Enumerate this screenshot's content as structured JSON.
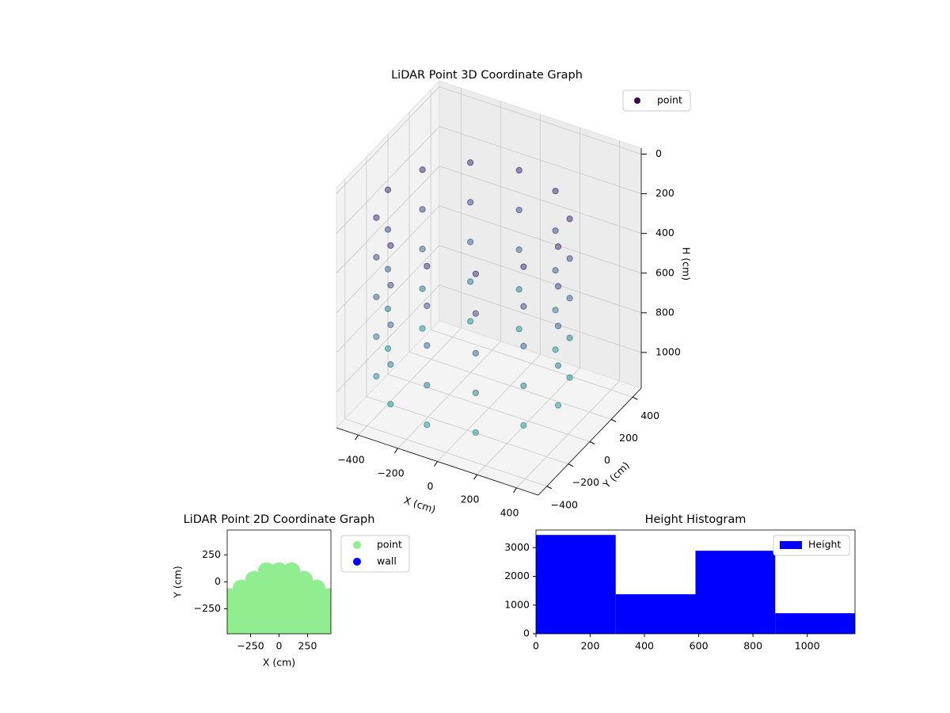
{
  "chart_data": [
    {
      "type": "scatter3d",
      "title": "LiDAR Point 3D Coordinate Graph",
      "xlabel": "X (cm)",
      "ylabel": "Y (cm)",
      "zlabel": "H (cm)",
      "xlim": [
        -510,
        510
      ],
      "ylim": [
        -480,
        480
      ],
      "zlim": [
        -30,
        1180
      ],
      "zinvert": true,
      "legend": "upper right",
      "xticks": [
        {
          "value": -400,
          "label": "−400"
        },
        {
          "value": -200,
          "label": "−200"
        },
        0,
        200,
        400
      ],
      "yticks": [
        {
          "value": -400,
          "label": "−400"
        },
        {
          "value": -200,
          "label": "−200"
        },
        0,
        200,
        400
      ],
      "zticks": [
        0,
        200,
        400,
        600,
        800,
        1000
      ],
      "series": [
        {
          "name": "point",
          "color": "#440154",
          "colormap": "viridis",
          "x": [
            350,
            292,
            135,
            -80,
            -295,
            -452,
            -510,
            -452,
            -295,
            -80,
            135,
            292,
            350,
            292,
            135,
            -80,
            -295,
            -452,
            -510,
            -452,
            -295,
            -80,
            135,
            292,
            350,
            292,
            135,
            -80,
            -295,
            -452,
            -510,
            -452,
            -295,
            -80,
            135,
            292,
            350,
            292,
            135,
            -80,
            -295,
            -452,
            -510,
            -452,
            -295,
            -80,
            135,
            292,
            350,
            292,
            135,
            -80,
            -295,
            -452,
            -510,
            -452,
            -295,
            -80,
            135,
            292
          ],
          "y": [
            0,
            215,
            372,
            430,
            372,
            215,
            0,
            -215,
            -372,
            -430,
            -372,
            -215,
            0,
            215,
            372,
            430,
            372,
            215,
            0,
            -215,
            -372,
            -430,
            -372,
            -215,
            0,
            215,
            372,
            430,
            372,
            215,
            0,
            -215,
            -372,
            -430,
            -372,
            -215,
            0,
            215,
            372,
            430,
            372,
            215,
            0,
            -215,
            -372,
            -430,
            -372,
            -215,
            0,
            215,
            372,
            430,
            372,
            215,
            0,
            -215,
            -372,
            -430,
            -372,
            -215
          ],
          "z": [
            250,
            250,
            250,
            250,
            250,
            250,
            250,
            250,
            250,
            250,
            250,
            250,
            450,
            450,
            450,
            450,
            450,
            450,
            450,
            450,
            450,
            450,
            450,
            450,
            650,
            650,
            650,
            650,
            650,
            650,
            650,
            650,
            650,
            650,
            650,
            650,
            850,
            850,
            850,
            850,
            850,
            850,
            850,
            850,
            850,
            850,
            850,
            850,
            1050,
            1050,
            1050,
            1050,
            1050,
            1050,
            1050,
            1050,
            1050,
            1050,
            1050,
            1050
          ]
        }
      ]
    },
    {
      "type": "scatter",
      "title": "LiDAR Point 2D Coordinate Graph",
      "xlabel": "X (cm)",
      "ylabel": "Y (cm)",
      "xlim": [
        -455,
        455
      ],
      "ylim": [
        -482,
        482
      ],
      "legend": "outside right",
      "xticks": [
        {
          "value": -250,
          "label": "−250"
        },
        0,
        250
      ],
      "yticks": [
        {
          "value": -250,
          "label": "−250"
        },
        0,
        250
      ],
      "series": [
        {
          "name": "point",
          "color": "#90ee90",
          "x": [
            -440,
            -440,
            -440,
            -440,
            -440,
            -330,
            -330,
            -330,
            -330,
            -330,
            -330,
            -220,
            -220,
            -220,
            -220,
            -220,
            -220,
            -220,
            -110,
            -110,
            -110,
            -110,
            -110,
            -110,
            -110,
            -110,
            0,
            0,
            0,
            0,
            0,
            0,
            0,
            0,
            110,
            110,
            110,
            110,
            110,
            110,
            110,
            110,
            220,
            220,
            220,
            220,
            220,
            220,
            220,
            330,
            330,
            330,
            330,
            330,
            330,
            440,
            440,
            440,
            440,
            440
          ],
          "y": [
            -460,
            -380,
            -300,
            -220,
            -140,
            -460,
            -380,
            -300,
            -220,
            -140,
            -60,
            -460,
            -380,
            -300,
            -220,
            -140,
            -60,
            20,
            -460,
            -380,
            -300,
            -220,
            -140,
            -60,
            20,
            100,
            -460,
            -380,
            -300,
            -220,
            -140,
            -60,
            20,
            100,
            -460,
            -380,
            -300,
            -220,
            -140,
            -60,
            20,
            100,
            -460,
            -380,
            -300,
            -220,
            -140,
            -60,
            20,
            -460,
            -380,
            -300,
            -220,
            -140,
            -60,
            -460,
            -380,
            -300,
            -220,
            -140
          ]
        },
        {
          "name": "wall",
          "color": "#0000ff",
          "x": [],
          "y": []
        }
      ]
    },
    {
      "type": "histogram",
      "title": "Height Histogram",
      "legend": "upper right",
      "bins": [
        0,
        294,
        588,
        882,
        1176
      ],
      "xlim": [
        0,
        1176
      ],
      "ylim": [
        0,
        3615
      ],
      "xticks": [
        0,
        200,
        400,
        600,
        800,
        1000
      ],
      "yticks": [
        0,
        1000,
        2000,
        3000
      ],
      "series": [
        {
          "name": "Height",
          "color": "#0000ff",
          "values": [
            3443,
            1377,
            2893,
            716
          ]
        }
      ]
    }
  ]
}
